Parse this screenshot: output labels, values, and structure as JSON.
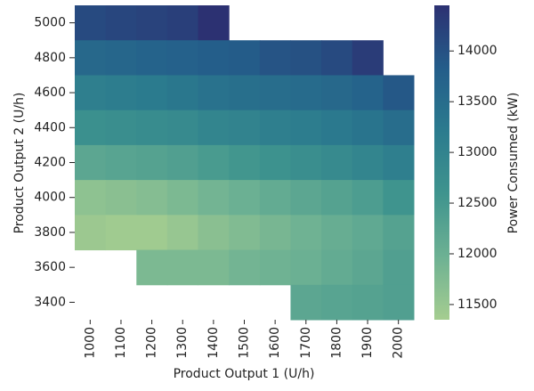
{
  "chart_data": {
    "type": "heatmap",
    "x_label": "Product Output 1 (U/h)",
    "y_label": "Product Output 2 (U/h)",
    "x_categories": [
      "1000",
      "1100",
      "1200",
      "1300",
      "1400",
      "1500",
      "1600",
      "1700",
      "1800",
      "1900",
      "2000"
    ],
    "y_categories": [
      "5000",
      "4800",
      "4600",
      "4400",
      "4200",
      "4000",
      "3800",
      "3600",
      "3400"
    ],
    "values": [
      [
        14100,
        14150,
        14200,
        14250,
        14450,
        null,
        null,
        null,
        null,
        null,
        null
      ],
      [
        13600,
        13650,
        13700,
        13750,
        13800,
        13850,
        13950,
        14000,
        14100,
        14300,
        null
      ],
      [
        13100,
        13150,
        13200,
        13300,
        13400,
        13450,
        13500,
        13550,
        13600,
        13700,
        13900
      ],
      [
        12700,
        12750,
        12800,
        12850,
        12950,
        13000,
        13100,
        13150,
        13250,
        13350,
        13500
      ],
      [
        12200,
        12250,
        12300,
        12350,
        12450,
        12550,
        12650,
        12750,
        12850,
        12950,
        13100
      ],
      [
        11600,
        11650,
        11700,
        11800,
        11900,
        12000,
        12100,
        12200,
        12300,
        12400,
        12600
      ],
      [
        11450,
        11400,
        11400,
        11500,
        11650,
        11750,
        11850,
        11950,
        12050,
        12150,
        12300
      ],
      [
        null,
        null,
        11800,
        11800,
        11800,
        11900,
        11950,
        12000,
        12100,
        12200,
        12350
      ],
      [
        null,
        null,
        null,
        null,
        null,
        null,
        null,
        12200,
        12250,
        12300,
        12350
      ]
    ],
    "colorbar_label": "Power Consumed (kW)",
    "zlim": [
      11350,
      14450
    ],
    "zticks": [
      11500,
      12000,
      12500,
      13000,
      13500,
      14000
    ],
    "colorscale": [
      "#a5cd90",
      "#6db193",
      "#3f948e",
      "#2b7b8e",
      "#245d8a",
      "#2c3172"
    ]
  }
}
